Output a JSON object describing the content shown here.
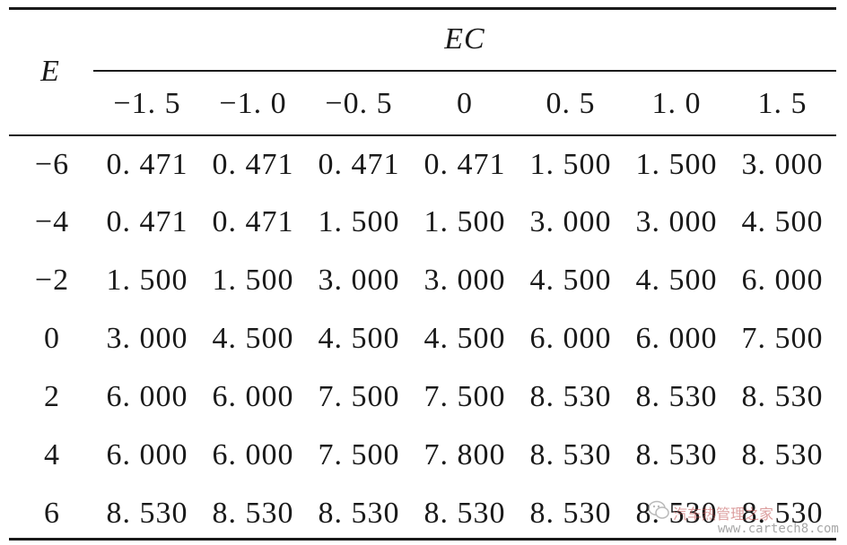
{
  "table": {
    "row_header": "E",
    "column_group_header": "EC",
    "columns": [
      "−1. 5",
      "−1. 0",
      "−0. 5",
      "0",
      "0. 5",
      "1. 0",
      "1. 5"
    ],
    "rows": [
      {
        "label": "−6",
        "values": [
          "0. 471",
          "0. 471",
          "0. 471",
          "0. 471",
          "1. 500",
          "1. 500",
          "3. 000"
        ]
      },
      {
        "label": "−4",
        "values": [
          "0. 471",
          "0. 471",
          "1. 500",
          "1. 500",
          "3. 000",
          "3. 000",
          "4. 500"
        ]
      },
      {
        "label": "−2",
        "values": [
          "1. 500",
          "1. 500",
          "3. 000",
          "3. 000",
          "4. 500",
          "4. 500",
          "6. 000"
        ]
      },
      {
        "label": "0",
        "values": [
          "3. 000",
          "4. 500",
          "4. 500",
          "4. 500",
          "6. 000",
          "6. 000",
          "7. 500"
        ]
      },
      {
        "label": "2",
        "values": [
          "6. 000",
          "6. 000",
          "7. 500",
          "7. 500",
          "8. 530",
          "8. 530",
          "8. 530"
        ]
      },
      {
        "label": "4",
        "values": [
          "6. 000",
          "6. 000",
          "7. 500",
          "7. 800",
          "8. 530",
          "8. 530",
          "8. 530"
        ]
      },
      {
        "label": "6",
        "values": [
          "8. 530",
          "8. 530",
          "8. 530",
          "8. 530",
          "8. 530",
          "8. 530",
          "8. 530"
        ]
      }
    ]
  },
  "watermark": {
    "name": "汽车热管理之家",
    "url": "www.cartech8.com"
  }
}
